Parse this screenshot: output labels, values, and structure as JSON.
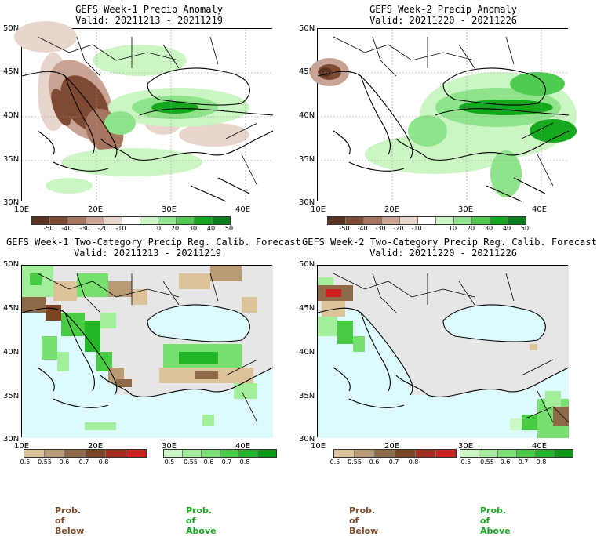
{
  "panels": [
    {
      "id": "tl",
      "title": "GEFS Week-1 Precip Anomaly",
      "valid": "Valid: 20211213 - 20211219"
    },
    {
      "id": "tr",
      "title": "GEFS Week-2 Precip Anomaly",
      "valid": "Valid: 20211220 - 20211226"
    },
    {
      "id": "bl",
      "title": "GEFS Week-1 Two-Category Precip Reg. Calib. Forecast",
      "valid": "Valid: 20211213 - 20211219"
    },
    {
      "id": "br",
      "title": "GEFS Week-2 Two-Category Precip Reg. Calib. Forecast",
      "valid": "Valid: 20211220 - 20211226"
    }
  ],
  "axes": {
    "lat_labels": [
      "50N",
      "45N",
      "40N",
      "35N",
      "30N"
    ],
    "lon_labels": [
      "10E",
      "20E",
      "30E",
      "40E"
    ]
  },
  "anomaly_colorbar": {
    "ticks": [
      "-50",
      "-40",
      "-30",
      "-20",
      "-10",
      "10",
      "20",
      "30",
      "40",
      "50"
    ],
    "colors": [
      "#5a3320",
      "#7e4a33",
      "#a77660",
      "#c9a393",
      "#e8d6cc",
      "#ffffff",
      "#ccf5c4",
      "#8fe38a",
      "#4fcb4f",
      "#16a81c",
      "#08801a"
    ]
  },
  "prob_below_colorbar": {
    "ticks": [
      "0.5",
      "0.55",
      "0.6",
      "0.7",
      "0.8"
    ],
    "colors": [
      "#ddc39a",
      "#b89a74",
      "#8f6a48",
      "#7b4422",
      "#a42d1e",
      "#c8221e"
    ]
  },
  "prob_above_colorbar": {
    "ticks": [
      "0.5",
      "0.55",
      "0.6",
      "0.7",
      "0.8"
    ],
    "colors": [
      "#ccf8c4",
      "#a3ee9a",
      "#77e06e",
      "#47cc44",
      "#22b526",
      "#0a9a14"
    ]
  },
  "footer": {
    "prob_below_left": "Prob. of Below",
    "prob_above_left": "Prob. of Above",
    "prob_below_right": "Prob. of Below",
    "prob_above_right": "Prob. of Above"
  },
  "colors": {
    "land": "#ffffff",
    "sea_prob": "#ddfbfd",
    "land_prob_missing": "#e6e6e6",
    "below_text": "#7b4a2a",
    "above_text": "#18a820"
  }
}
